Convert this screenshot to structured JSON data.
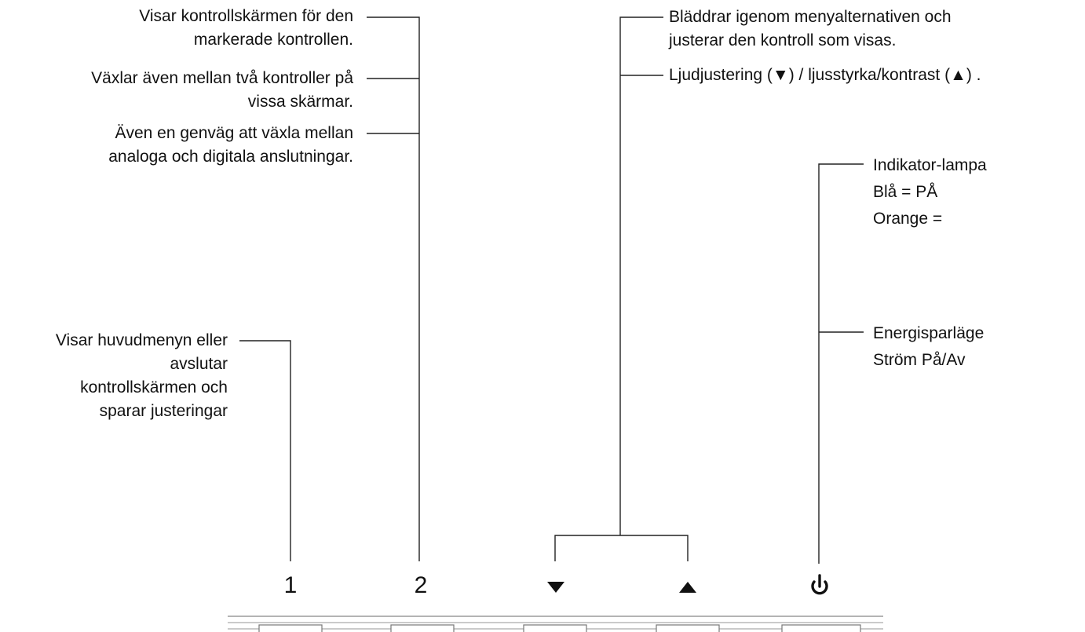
{
  "callouts": {
    "osd": [
      "Visar kontrollskärmen för den",
      "markerade kontrollen."
    ],
    "toggle": [
      "Växlar även mellan två kontroller på",
      "vissa skärmar."
    ],
    "shortcut": [
      "Även en genväg att växla mellan",
      "analoga och digitala anslutningar."
    ],
    "menu": [
      "Visar huvudmenyn eller",
      "avslutar",
      "kontrollskärmen och",
      "sparar justeringar"
    ],
    "scroll": [
      "Bläddrar igenom menyalternativen och",
      "justerar den kontroll som visas."
    ],
    "adjust": "Ljudjustering (▼) / ljusstyrka/kontrast  (▲) .",
    "indicator": [
      "Indikator-lampa",
      "Blå = PÅ",
      "Orange ="
    ],
    "power": [
      "Energisparläge",
      "Ström På/Av"
    ]
  },
  "buttons": {
    "one": "1",
    "two": "2",
    "down_icon": "triangle-down",
    "up_icon": "triangle-up",
    "power_icon": "power-symbol"
  }
}
